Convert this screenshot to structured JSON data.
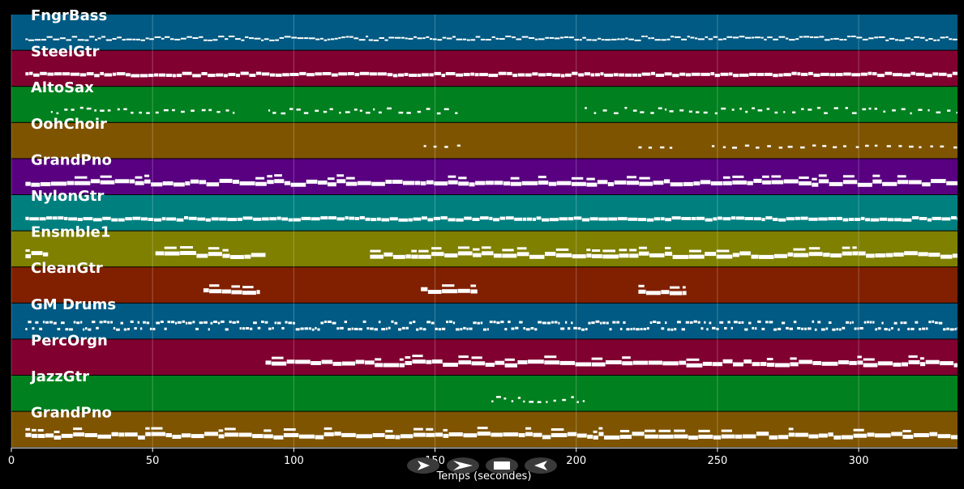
{
  "chart_data": {
    "type": "piano-roll",
    "xlabel": "Temps (secondes)",
    "xlim": [
      0,
      335
    ],
    "xticks": [
      0,
      50,
      100,
      150,
      200,
      250,
      300
    ],
    "grid": true,
    "tracks": [
      {
        "name": "FngrBass",
        "color": "#015a83",
        "style": "thin",
        "segments": [
          [
            5,
            335
          ]
        ]
      },
      {
        "name": "SteelGtr",
        "color": "#800030",
        "style": "dense",
        "segments": [
          [
            5,
            335
          ]
        ]
      },
      {
        "name": "AltoSax",
        "color": "#00801e",
        "style": "sparse",
        "segments": [
          [
            14,
            80
          ],
          [
            91,
            158
          ],
          [
            203,
            335
          ]
        ]
      },
      {
        "name": "OohChoir",
        "color": "#7f5400",
        "style": "dashes",
        "segments": [
          [
            146,
            159
          ],
          [
            222,
            234
          ],
          [
            248,
            335
          ]
        ]
      },
      {
        "name": "GrandPno",
        "color": "#580080",
        "style": "thick",
        "segments": [
          [
            5,
            335
          ]
        ]
      },
      {
        "name": "NylonGtr",
        "color": "#007f7f",
        "style": "dense",
        "segments": [
          [
            5,
            335
          ]
        ]
      },
      {
        "name": "Ensmble1",
        "color": "#7f7f00",
        "style": "thick",
        "segments": [
          [
            5,
            13
          ],
          [
            51,
            90
          ],
          [
            127,
            335
          ]
        ]
      },
      {
        "name": "CleanGtr",
        "color": "#802000",
        "style": "thick",
        "segments": [
          [
            68,
            88
          ],
          [
            145,
            165
          ],
          [
            222,
            239
          ]
        ]
      },
      {
        "name": "GM Drums",
        "color": "#015a83",
        "style": "drums",
        "segments": [
          [
            5,
            335
          ]
        ]
      },
      {
        "name": "PercOrgn",
        "color": "#800030",
        "style": "thick",
        "segments": [
          [
            90,
            335
          ]
        ]
      },
      {
        "name": "JazzGtr",
        "color": "#00801e",
        "style": "sparse",
        "segments": [
          [
            170,
            203
          ]
        ]
      },
      {
        "name": "GrandPno",
        "color": "#7f5400",
        "style": "thick",
        "segments": [
          [
            5,
            335
          ]
        ]
      }
    ]
  },
  "controls": {
    "items": [
      {
        "name": "play-button",
        "icon": "play-icon"
      },
      {
        "name": "forward-button",
        "icon": "fast-forward-icon"
      },
      {
        "name": "stop-button",
        "icon": "stop-icon"
      },
      {
        "name": "back-button",
        "icon": "rewind-icon"
      }
    ]
  }
}
